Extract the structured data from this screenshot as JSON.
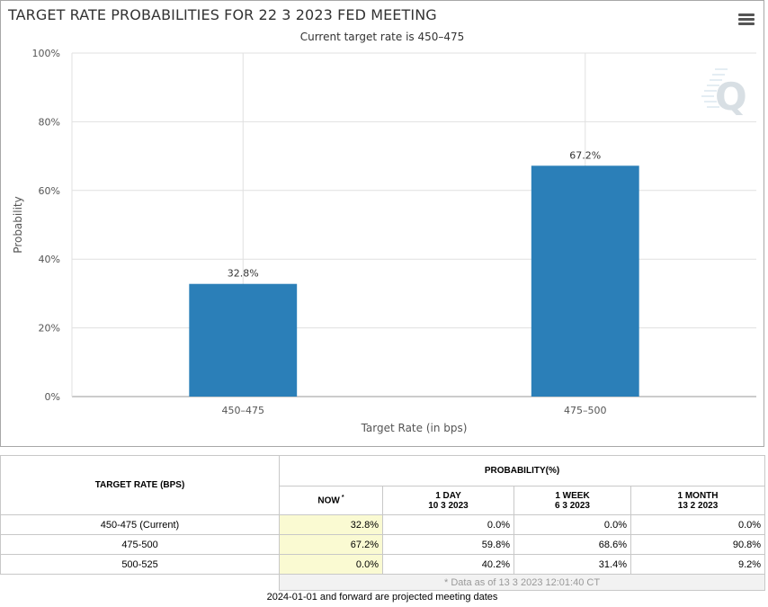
{
  "chart": {
    "title": "TARGET RATE PROBABILITIES FOR 22 3 2023 FED MEETING",
    "subtitle": "Current target rate is 450–475",
    "menu_icon": "hamburger-menu-icon",
    "watermark_icon": "cme-fedwatch-q-logo"
  },
  "chart_data": {
    "type": "bar",
    "title": "TARGET RATE PROBABILITIES FOR 22 3 2023 FED MEETING",
    "subtitle": "Current target rate is 450–475",
    "categories": [
      "450–475",
      "475–500"
    ],
    "values": [
      32.8,
      67.2
    ],
    "value_labels": [
      "32.8%",
      "67.2%"
    ],
    "xlabel": "Target Rate (in bps)",
    "ylabel": "Probability",
    "ylim": [
      0,
      100
    ],
    "yticks": [
      0,
      20,
      40,
      60,
      80,
      100
    ],
    "ytick_labels": [
      "0%",
      "20%",
      "40%",
      "60%",
      "80%",
      "100%"
    ],
    "grid": true,
    "bar_color": "#2b7fb8"
  },
  "table": {
    "target_header": "TARGET RATE (BPS)",
    "prob_header": "PROBABILITY(%)",
    "cols": [
      {
        "line1": "NOW",
        "line2": "*"
      },
      {
        "line1": "1 DAY",
        "line2": "10 3 2023"
      },
      {
        "line1": "1 WEEK",
        "line2": "6 3 2023"
      },
      {
        "line1": "1 MONTH",
        "line2": "13 2 2023"
      }
    ],
    "rows": [
      {
        "label": "450-475 (Current)",
        "values": [
          "32.8%",
          "0.0%",
          "0.0%",
          "0.0%"
        ]
      },
      {
        "label": "475-500",
        "values": [
          "67.2%",
          "59.8%",
          "68.6%",
          "90.8%"
        ]
      },
      {
        "label": "500-525",
        "values": [
          "0.0%",
          "40.2%",
          "31.4%",
          "9.2%"
        ]
      }
    ],
    "footnote": "* Data as of 13 3 2023 12:01:40 CT"
  },
  "bottom_note": "2024-01-01 and forward are projected meeting dates"
}
